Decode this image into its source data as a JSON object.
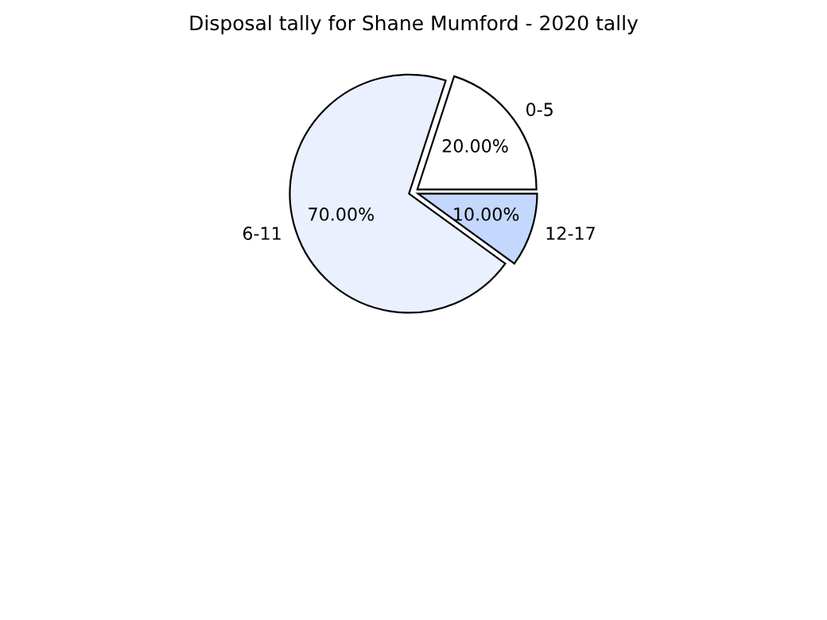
{
  "chart_data": {
    "type": "pie",
    "title": "Disposal tally for Shane Mumford - 2020 tally",
    "categories": [
      "0-5",
      "6-11",
      "12-17"
    ],
    "values": [
      20,
      70,
      10
    ],
    "value_labels": [
      "20.00%",
      "70.00%",
      "10.00%"
    ],
    "colors": [
      "#ffffff",
      "#eaf0fe",
      "#c4d7fc"
    ]
  }
}
